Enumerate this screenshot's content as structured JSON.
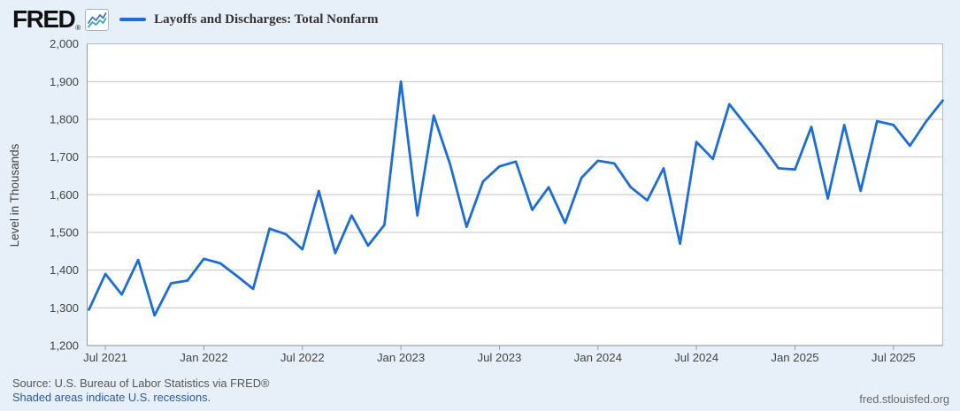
{
  "header": {
    "logo": "FRED",
    "logo_mark": "®",
    "series_title": "Layoffs and Discharges: Total Nonfarm"
  },
  "footer": {
    "source_line": "Source: U.S. Bureau of Labor Statistics via FRED®",
    "recession_note": "Shaded areas indicate U.S. recessions.",
    "site_link": "fred.stlouisfed.org"
  },
  "colors": {
    "page_background": "#e7f0f9",
    "plot_background": "#ffffff",
    "line": "#1b6ed8",
    "gridline": "#c4c4c4",
    "axis": "#9a9a9a",
    "tick_text": "#444444",
    "link_blue": "#2a58a0",
    "logo_icon_blue": "#3b72d8",
    "logo_icon_teal": "#44a8a2"
  },
  "chart_data": {
    "type": "line",
    "title": "Layoffs and Discharges: Total Nonfarm",
    "ylabel": "Level in Thousands",
    "xlabel": "",
    "units": "Thousands",
    "frequency": "Monthly",
    "grid": true,
    "legend_position": "top-left-header",
    "ylim": [
      1200,
      2000
    ],
    "y_ticks": [
      2000,
      1900,
      1800,
      1700,
      1600,
      1500,
      1400,
      1300,
      1200
    ],
    "y_tick_labels": [
      "2,000",
      "1,900",
      "1,800",
      "1,700",
      "1,600",
      "1,500",
      "1,400",
      "1,300",
      "1,200"
    ],
    "x_tick_labels": [
      "Jul 2021",
      "Jan 2022",
      "Jul 2022",
      "Jan 2023",
      "Jul 2023",
      "Jan 2024",
      "Jul 2024",
      "Jan 2025",
      "Jul 2025"
    ],
    "x_tick_month_index": [
      1,
      7,
      13,
      19,
      25,
      31,
      37,
      43,
      49
    ],
    "x": [
      "Jun 2021",
      "Jul 2021",
      "Aug 2021",
      "Sep 2021",
      "Oct 2021",
      "Nov 2021",
      "Dec 2021",
      "Jan 2022",
      "Feb 2022",
      "Mar 2022",
      "Apr 2022",
      "May 2022",
      "Jun 2022",
      "Jul 2022",
      "Aug 2022",
      "Sep 2022",
      "Oct 2022",
      "Nov 2022",
      "Dec 2022",
      "Jan 2023",
      "Feb 2023",
      "Mar 2023",
      "Apr 2023",
      "May 2023",
      "Jun 2023",
      "Jul 2023",
      "Aug 2023",
      "Sep 2023",
      "Oct 2023",
      "Nov 2023",
      "Dec 2023",
      "Jan 2024",
      "Feb 2024",
      "Mar 2024",
      "Apr 2024",
      "May 2024",
      "Jun 2024",
      "Jul 2024",
      "Aug 2024",
      "Sep 2024",
      "Oct 2024",
      "Nov 2024",
      "Dec 2024",
      "Jan 2025",
      "Feb 2025",
      "Mar 2025",
      "Apr 2025",
      "May 2025",
      "Jun 2025",
      "Jul 2025",
      "Aug 2025",
      "Sep 2025",
      "Oct 2025"
    ],
    "series": [
      {
        "name": "Layoffs and Discharges: Total Nonfarm",
        "values": [
          1295,
          1390,
          1335,
          1427,
          1280,
          1365,
          1372,
          1430,
          1418,
          1385,
          1350,
          1510,
          1495,
          1455,
          1610,
          1445,
          1545,
          1465,
          1520,
          1900,
          1545,
          1810,
          1680,
          1515,
          1635,
          1675,
          1688,
          1560,
          1620,
          1525,
          1645,
          1690,
          1683,
          1620,
          1585,
          1670,
          1470,
          1740,
          1695,
          1840,
          1785,
          1730,
          1670,
          1667,
          1780,
          1590,
          1785,
          1610,
          1795,
          1785,
          1730,
          1795,
          1850
        ]
      }
    ]
  }
}
